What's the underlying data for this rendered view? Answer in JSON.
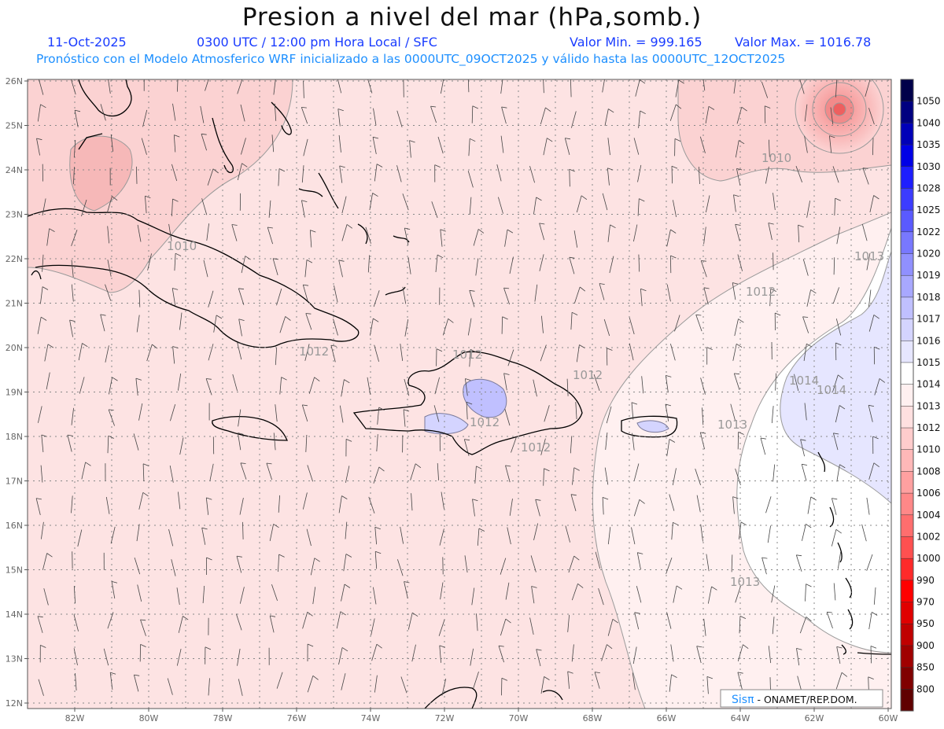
{
  "header": {
    "title": "Presion a nivel del mar (hPa,somb.)",
    "date": "11-Oct-2025",
    "time": "0300 UTC / 12:00 pm Hora Local / SFC",
    "min_label": "Valor Min. = 999.165",
    "max_label": "Valor Max. = 1016.78",
    "forecast_info": "Pronóstico con el Modelo Atmosferico WRF inicializado a las 0000UTC_09OCT2025 y válido hasta las  0000UTC_12OCT2025"
  },
  "axes": {
    "lat_labels": [
      "26N",
      "25N",
      "24N",
      "23N",
      "22N",
      "21N",
      "20N",
      "19N",
      "18N",
      "17N",
      "16N",
      "15N",
      "14N",
      "13N",
      "12N"
    ],
    "lon_labels": [
      "82W",
      "80W",
      "78W",
      "76W",
      "74W",
      "72W",
      "70W",
      "68W",
      "66W",
      "64W",
      "62W",
      "60W"
    ]
  },
  "contour_labels": [
    "1010",
    "1010",
    "1012",
    "1012",
    "1012",
    "1012",
    "1012",
    "1013",
    "1013",
    "1013",
    "1014",
    "1014",
    "1012"
  ],
  "colorbar": {
    "levels": [
      "1050",
      "1040",
      "1035",
      "1030",
      "1028",
      "1025",
      "1022",
      "1020",
      "1019",
      "1018",
      "1017",
      "1016",
      "1015",
      "1014",
      "1013",
      "1012",
      "1010",
      "1008",
      "1006",
      "1004",
      "1002",
      "1000",
      "990",
      "970",
      "950",
      "900",
      "850",
      "800"
    ],
    "colors": [
      "#00004a",
      "#000080",
      "#0000b8",
      "#0000e6",
      "#1e1eff",
      "#3c3cff",
      "#5a5aff",
      "#7878ff",
      "#9090ff",
      "#a8a8ff",
      "#c0c0ff",
      "#d4d4ff",
      "#e6e6ff",
      "#ffffff",
      "#fff0f0",
      "#ffe0e0",
      "#ffcccc",
      "#ffb8b8",
      "#ffa0a0",
      "#ff8888",
      "#ff6e6e",
      "#ff5050",
      "#ff2a2a",
      "#ff0000",
      "#e00000",
      "#c00000",
      "#a00000",
      "#800000",
      "#600000"
    ]
  },
  "credit": {
    "brand": "Sisπ",
    "text": " - ONAMET/REP.DOM."
  },
  "colors": {
    "background_field": "#fde3e3",
    "low_center": "#ef6b6b",
    "coast": "#000000",
    "contour": "#9a9a9a",
    "grid": "#888888"
  }
}
